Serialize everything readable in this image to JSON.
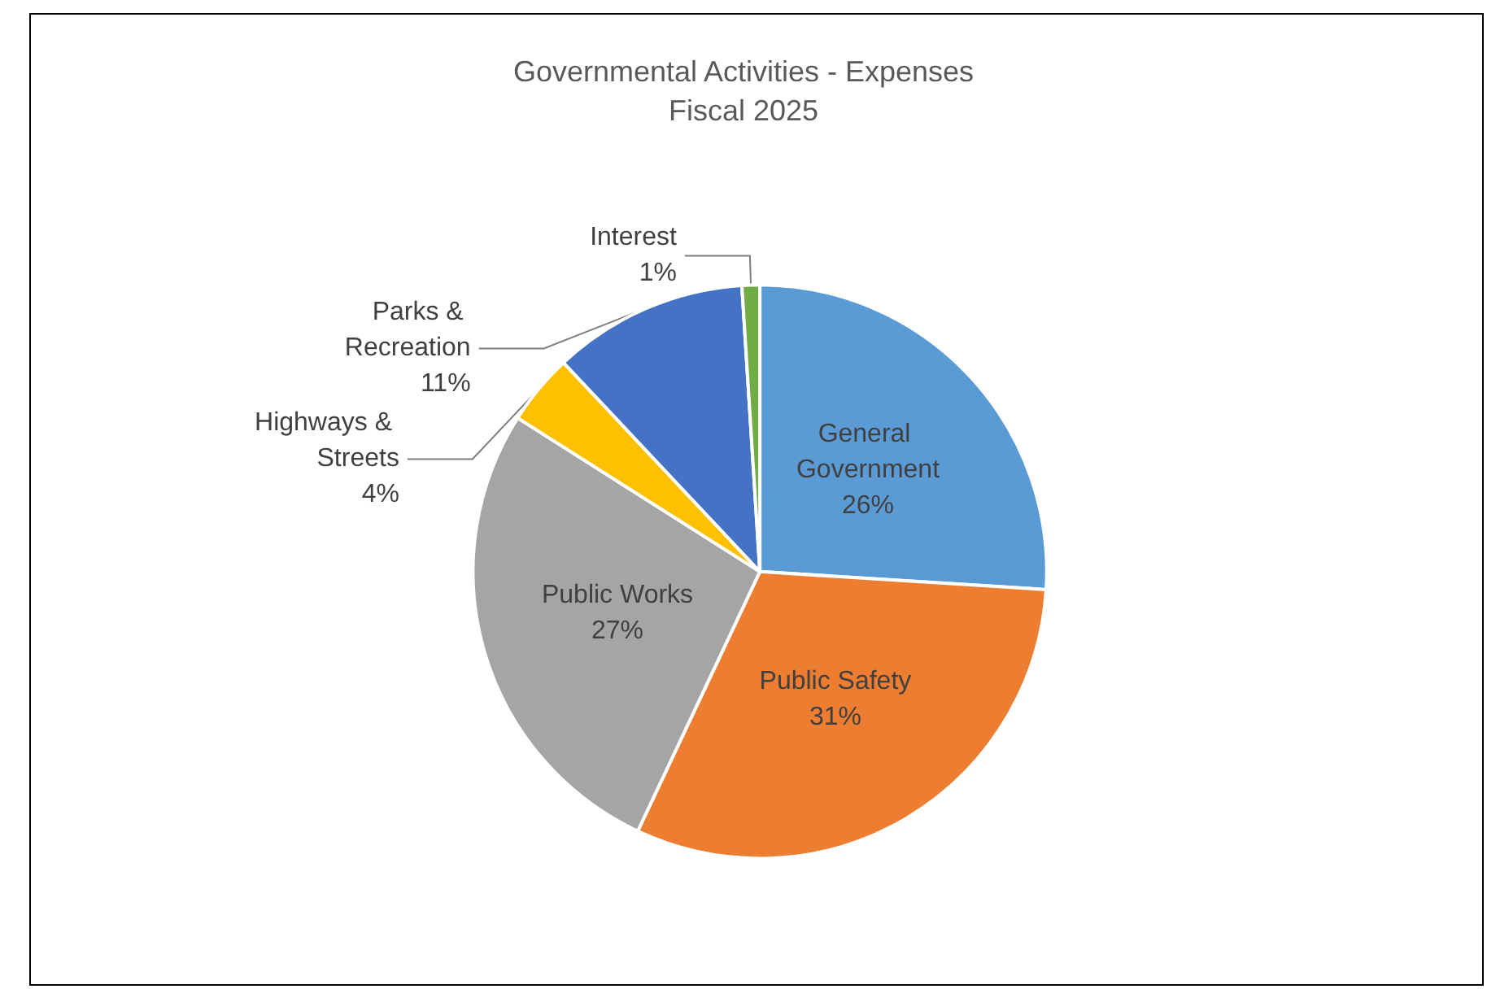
{
  "chart_data": {
    "type": "pie",
    "title": "Governmental Activities - Expenses",
    "subtitle": "Fiscal 2025",
    "categories": [
      "General Government",
      "Public Safety",
      "Public Works",
      "Highways & Streets",
      "Parks & Recreation",
      "Interest"
    ],
    "values": [
      26,
      31,
      27,
      4,
      11,
      1
    ],
    "colors": [
      "#5b9bd5",
      "#ed7d31",
      "#a5a5a5",
      "#ffc000",
      "#4472c4",
      "#70ad47"
    ],
    "value_labels": [
      "26%",
      "31%",
      "27%",
      "4%",
      "11%",
      "1%"
    ],
    "legend": false
  }
}
